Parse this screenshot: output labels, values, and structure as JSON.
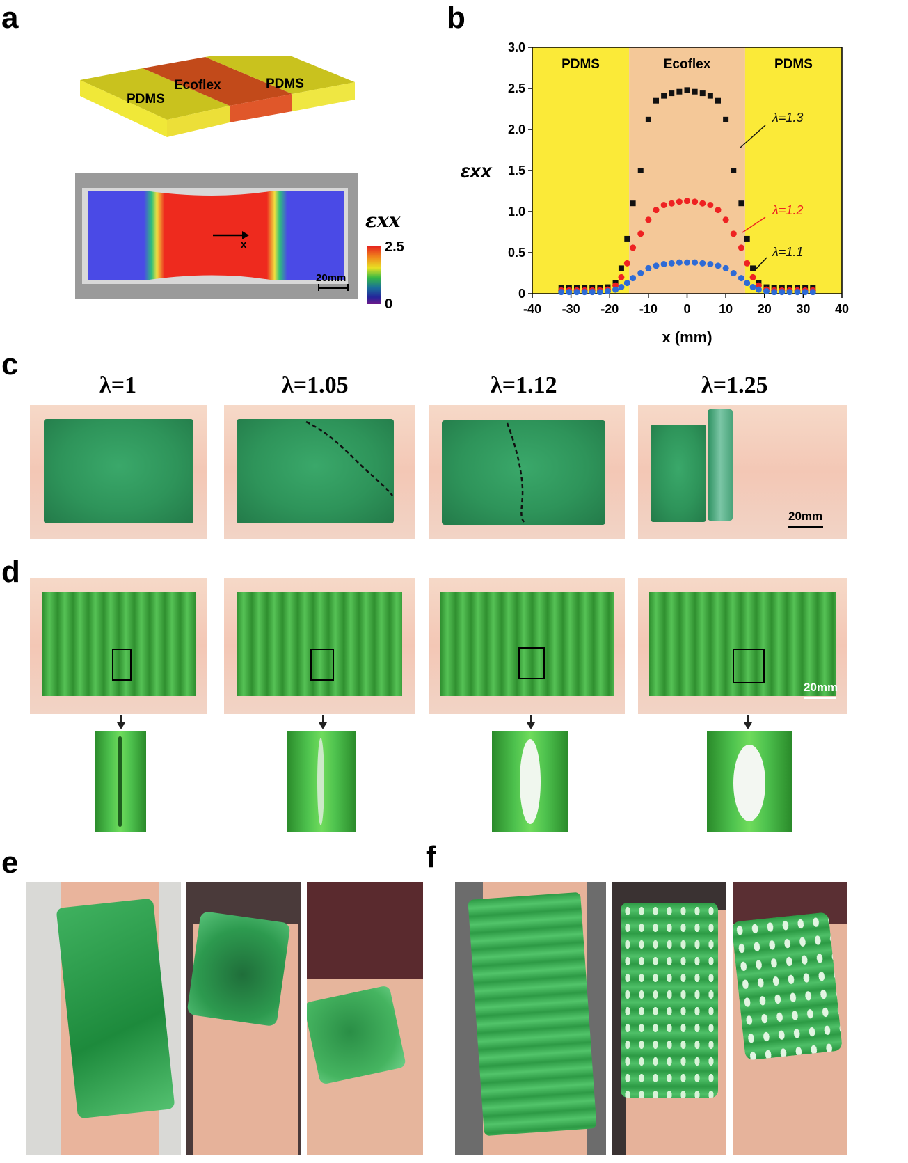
{
  "panels": {
    "a": "a",
    "b": "b",
    "c": "c",
    "d": "d",
    "e": "e",
    "f": "f"
  },
  "panel_a": {
    "layer_left": "PDMS",
    "layer_middle": "Ecoflex",
    "layer_right": "PDMS",
    "strain_symbol": "εxx",
    "colorbar_max": "2.5",
    "colorbar_min": "0",
    "axis_label": "x",
    "scale_label": "20mm"
  },
  "panel_c": {
    "labels": [
      "λ=1",
      "λ=1.05",
      "λ=1.12",
      "λ=1.25"
    ],
    "scale_label": "20mm"
  },
  "panel_d": {
    "scale_label": "20mm"
  },
  "colors": {
    "pdms": "#fbea38",
    "ecoflex": "#f4c898",
    "black_series": "#111111",
    "red_series": "#ee2222",
    "blue_series": "#2e6bd6"
  },
  "chart_data": {
    "type": "scatter",
    "title": "",
    "xlabel": "x (mm)",
    "ylabel": "εxx",
    "xlim": [
      -40,
      40
    ],
    "ylim": [
      0,
      3.0
    ],
    "xticks": [
      "-40",
      "-30",
      "-20",
      "-10",
      "0",
      "10",
      "20",
      "30",
      "40"
    ],
    "yticks": [
      "0",
      "0.5",
      "1.0",
      "1.5",
      "2.0",
      "2.5",
      "3.0"
    ],
    "regions": [
      {
        "label": "PDMS",
        "x_from": -40,
        "x_to": -15
      },
      {
        "label": "Ecoflex",
        "x_from": -15,
        "x_to": 15
      },
      {
        "label": "PDMS",
        "x_from": 15,
        "x_to": 40
      }
    ],
    "annotations": [
      "λ=1.3",
      "λ=1.2",
      "λ=1.1"
    ],
    "series": [
      {
        "name": "λ=1.3",
        "color": "#111111",
        "marker": "square",
        "x": [
          -32.5,
          -30.5,
          -28.5,
          -26.5,
          -24.5,
          -22.5,
          -20.5,
          -18.5,
          -17,
          -15.5,
          -14,
          -12,
          -10,
          -8,
          -6,
          -4,
          -2,
          0,
          2,
          4,
          6,
          8,
          10,
          12,
          14,
          15.5,
          17,
          18.5,
          20.5,
          22.5,
          24.5,
          26.5,
          28.5,
          30.5,
          32.5
        ],
        "y": [
          0.07,
          0.07,
          0.07,
          0.07,
          0.07,
          0.07,
          0.08,
          0.13,
          0.31,
          0.67,
          1.1,
          1.5,
          2.12,
          2.35,
          2.41,
          2.44,
          2.46,
          2.48,
          2.46,
          2.44,
          2.41,
          2.35,
          2.12,
          1.5,
          1.1,
          0.67,
          0.31,
          0.13,
          0.08,
          0.07,
          0.07,
          0.07,
          0.07,
          0.07,
          0.07
        ]
      },
      {
        "name": "λ=1.2",
        "color": "#ee2222",
        "marker": "circle",
        "x": [
          -32.5,
          -30.5,
          -28.5,
          -26.5,
          -24.5,
          -22.5,
          -20.5,
          -18.5,
          -17,
          -15.5,
          -14,
          -12,
          -10,
          -8,
          -6,
          -4,
          -2,
          0,
          2,
          4,
          6,
          8,
          10,
          12,
          14,
          15.5,
          17,
          18.5,
          20.5,
          22.5,
          24.5,
          26.5,
          28.5,
          30.5,
          32.5
        ],
        "y": [
          0.04,
          0.04,
          0.04,
          0.04,
          0.04,
          0.04,
          0.05,
          0.1,
          0.2,
          0.37,
          0.56,
          0.73,
          0.9,
          1.02,
          1.08,
          1.1,
          1.12,
          1.13,
          1.12,
          1.1,
          1.08,
          1.02,
          0.9,
          0.73,
          0.56,
          0.37,
          0.2,
          0.1,
          0.05,
          0.04,
          0.04,
          0.04,
          0.04,
          0.04,
          0.04
        ]
      },
      {
        "name": "λ=1.1",
        "color": "#2e6bd6",
        "marker": "circle",
        "x": [
          -32.5,
          -30.5,
          -28.5,
          -26.5,
          -24.5,
          -22.5,
          -20.5,
          -18.5,
          -17,
          -15.5,
          -14,
          -12,
          -10,
          -8,
          -6,
          -4,
          -2,
          0,
          2,
          4,
          6,
          8,
          10,
          12,
          14,
          15.5,
          17,
          18.5,
          20.5,
          22.5,
          24.5,
          26.5,
          28.5,
          30.5,
          32.5
        ],
        "y": [
          0.02,
          0.02,
          0.02,
          0.02,
          0.02,
          0.02,
          0.03,
          0.05,
          0.08,
          0.13,
          0.19,
          0.25,
          0.31,
          0.34,
          0.36,
          0.37,
          0.38,
          0.38,
          0.38,
          0.37,
          0.36,
          0.34,
          0.31,
          0.25,
          0.19,
          0.13,
          0.08,
          0.05,
          0.03,
          0.02,
          0.02,
          0.02,
          0.02,
          0.02,
          0.02
        ]
      }
    ]
  }
}
